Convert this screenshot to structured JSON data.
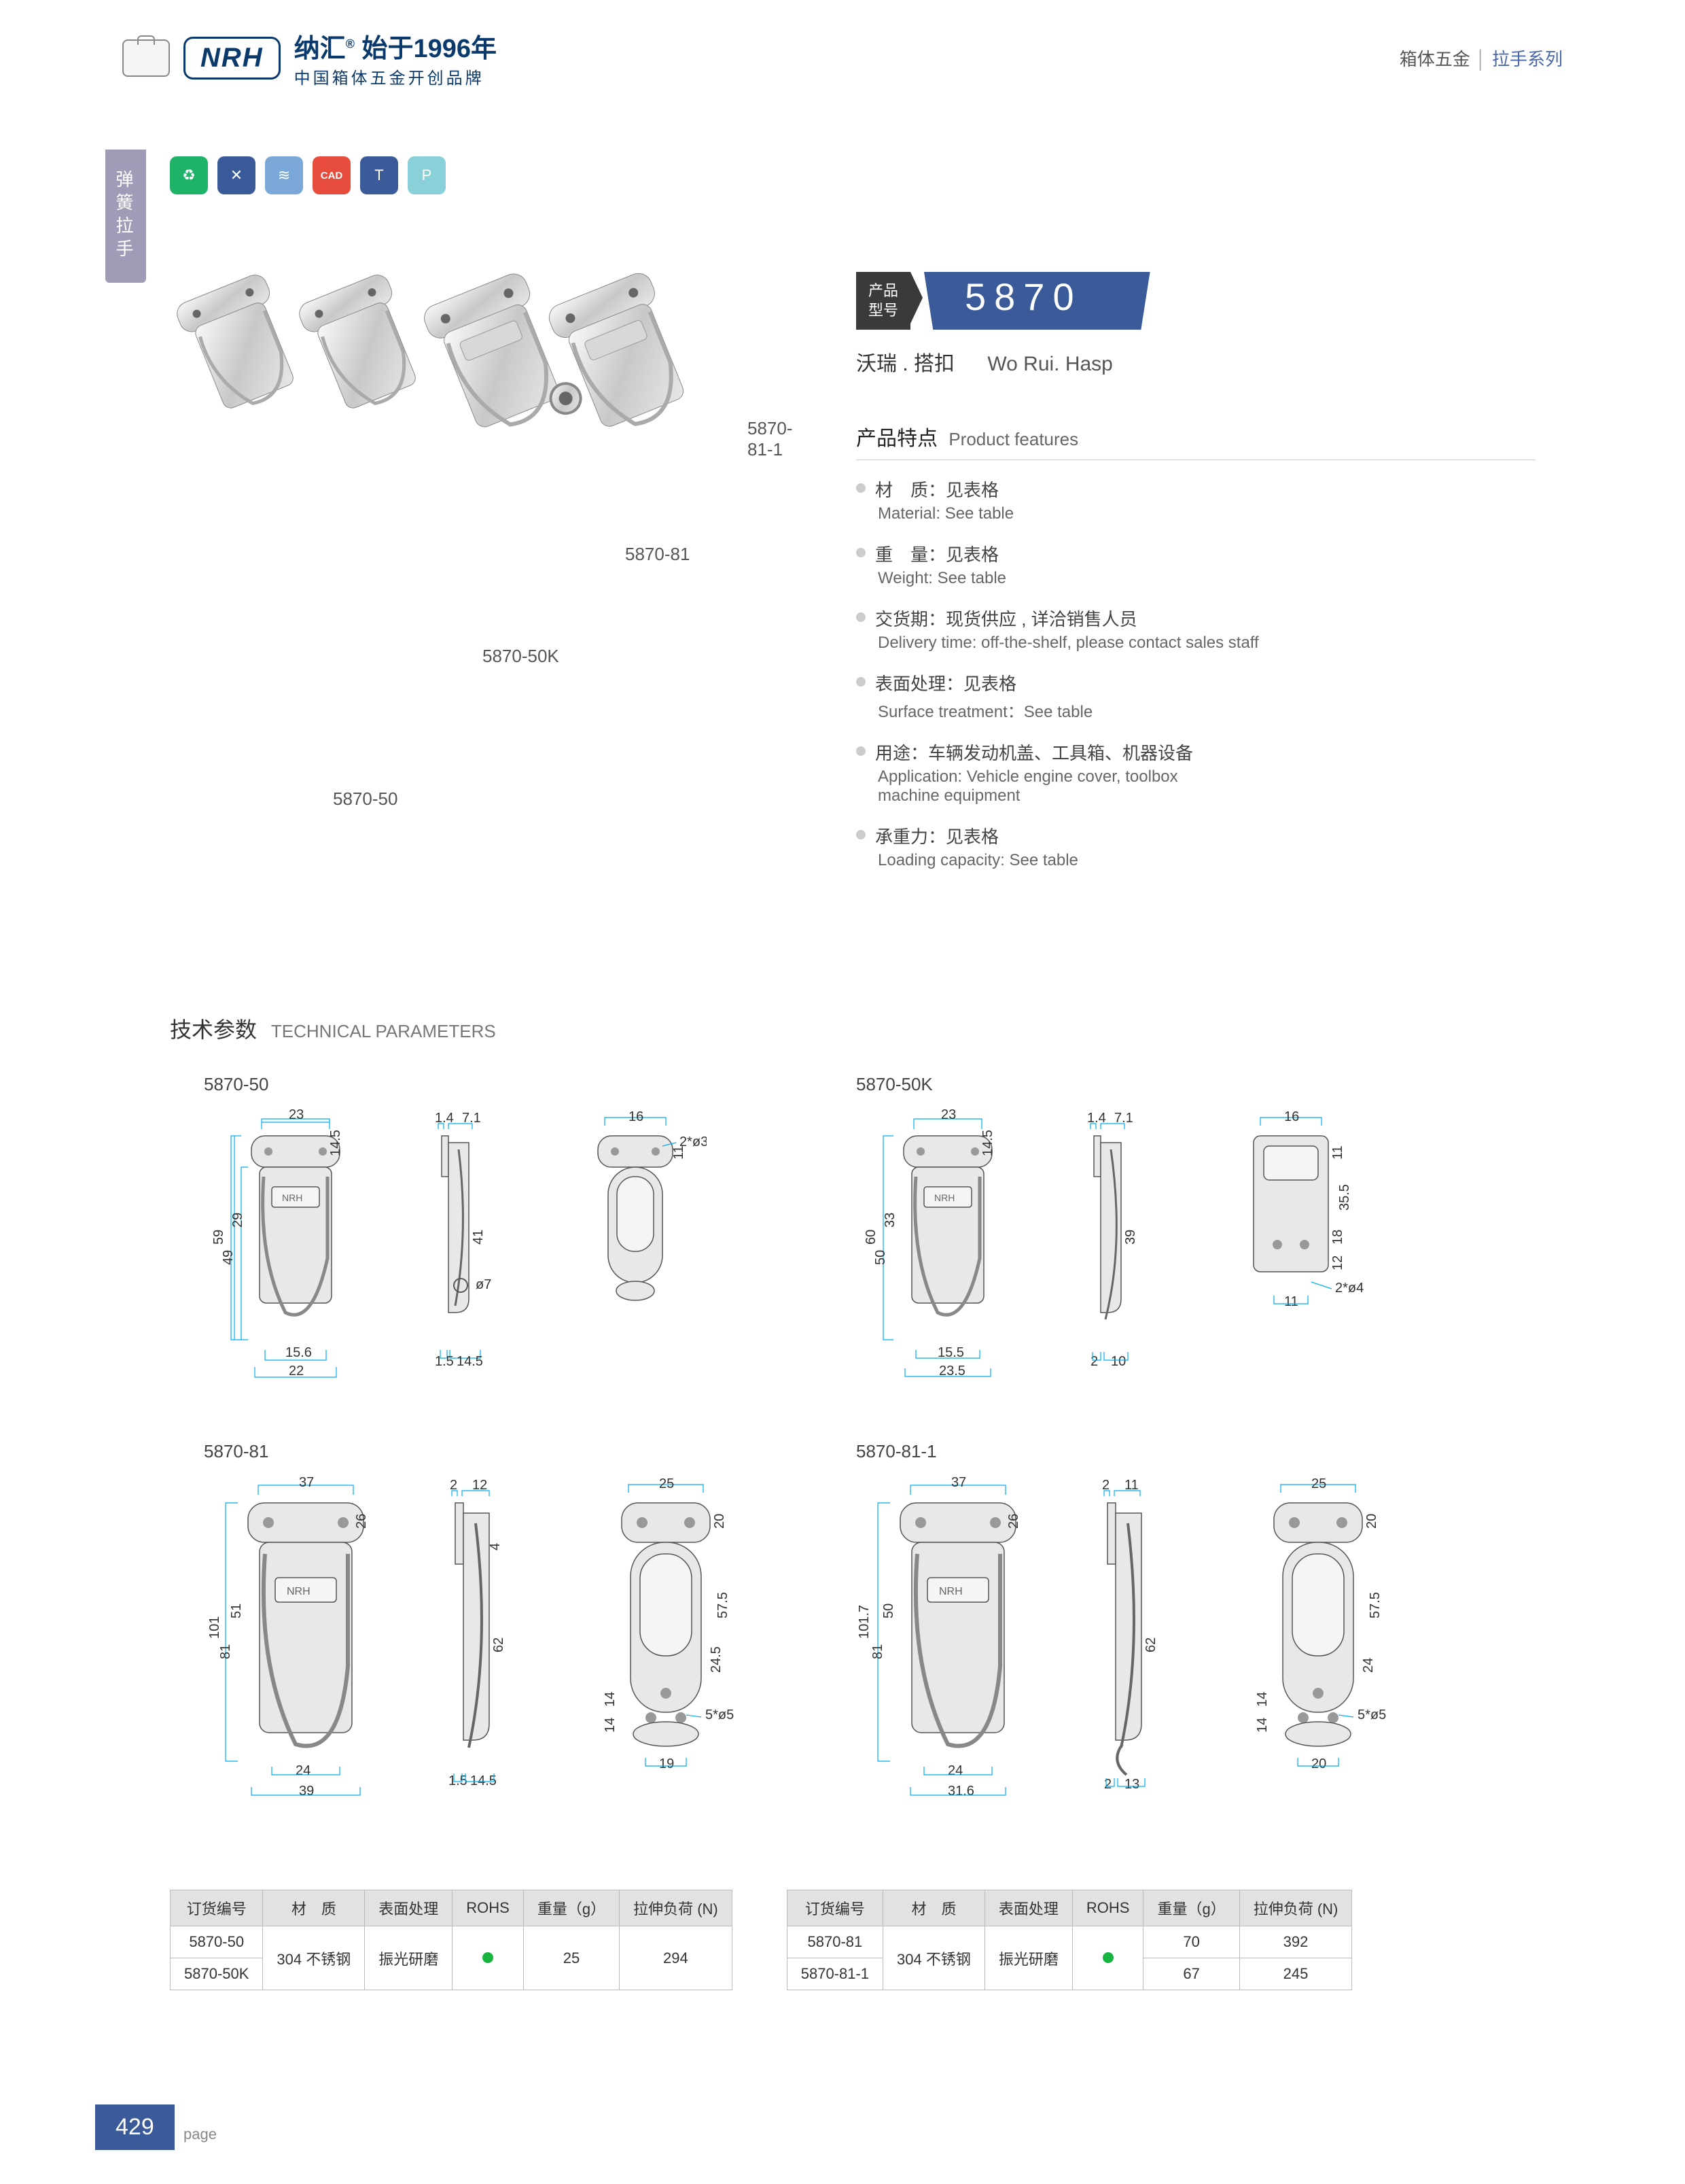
{
  "header": {
    "brand_cn": "纳汇",
    "brand_year": "始于1996年",
    "brand_sub": "中国箱体五金开创品牌",
    "brand_logo": "NRH",
    "right_a": "箱体五金",
    "right_b": "拉手系列"
  },
  "side_tab": "弹簧拉手",
  "feature_icons": [
    {
      "bg": "#1fb36a",
      "text": "♻"
    },
    {
      "bg": "#3a5a9a",
      "text": "✕"
    },
    {
      "bg": "#7aa8d8",
      "text": "≋"
    },
    {
      "bg": "#e74c3c",
      "text": "CAD"
    },
    {
      "bg": "#3a5a9a",
      "text": "T"
    },
    {
      "bg": "#8ad0d8",
      "text": "P"
    }
  ],
  "image_labels": {
    "a": "5870-81-1",
    "b": "5870-81",
    "c": "5870-50K",
    "d": "5870-50"
  },
  "product_id_label": "产品\n型号",
  "product_id": "5870",
  "product_name_cn": "沃瑞 . 搭扣",
  "product_name_en": "Wo Rui. Hasp",
  "features_title_cn": "产品特点",
  "features_title_en": "Product features",
  "features": [
    {
      "cn": "材　质：见表格",
      "en": "Material: See table"
    },
    {
      "cn": "重　量：见表格",
      "en": "Weight: See table"
    },
    {
      "cn": "交货期：现货供应 , 详洽销售人员",
      "en": "Delivery time: off-the-shelf, please contact sales staff"
    },
    {
      "cn": "表面处理：见表格",
      "en": "Surface treatment：See table"
    },
    {
      "cn": "用途：车辆发动机盖、工具箱、机器设备",
      "en": "Application: Vehicle engine cover, toolbox\n machine equipment"
    },
    {
      "cn": "承重力：见表格",
      "en": "Loading capacity: See table"
    }
  ],
  "tech_title_cn": "技术参数",
  "tech_title_en": "TECHNICAL PARAMETERS",
  "diagrams": {
    "d1": {
      "title": "5870-50",
      "dims": {
        "w": "23",
        "h": "59",
        "h2": "49",
        "h3": "29",
        "h4": "14.5",
        "bw": "22",
        "bw2": "15.6",
        "s1": "1.4",
        "s2": "7.1",
        "s3": "1.5",
        "s4": "14.5",
        "s5": "41",
        "r1": "16",
        "r2": "11",
        "r3": "2*ø3",
        "r4": "ø7"
      }
    },
    "d2": {
      "title": "5870-50K",
      "dims": {
        "w": "23",
        "h": "60",
        "h2": "50",
        "h3": "33",
        "h4": "14.5",
        "bw": "23.5",
        "bw2": "15.5",
        "s1": "1.4",
        "s2": "7.1",
        "s3": "2",
        "s4": "10",
        "s5": "39",
        "r1": "16",
        "r2": "11",
        "r3": "35.5",
        "r4": "18",
        "r5": "12",
        "r6": "2*ø4",
        "r7": "11"
      }
    },
    "d3": {
      "title": "5870-81",
      "dims": {
        "w": "37",
        "h": "101",
        "h2": "81",
        "h3": "51",
        "h4": "26",
        "bw": "39",
        "bw2": "24",
        "s1": "2",
        "s2": "12",
        "s3": "1.5",
        "s4": "14.5",
        "s5": "62",
        "s6": "4",
        "r1": "25",
        "r2": "20",
        "r3": "57.5",
        "r4": "24.5",
        "r5": "14",
        "r6": "14",
        "r7": "5*ø5",
        "r8": "19"
      }
    },
    "d4": {
      "title": "5870-81-1",
      "dims": {
        "w": "37",
        "h": "101.7",
        "h2": "81",
        "h3": "50",
        "h4": "26",
        "bw": "31.6",
        "bw2": "24",
        "s1": "2",
        "s2": "11",
        "s3": "2",
        "s4": "13",
        "s5": "62",
        "r1": "25",
        "r2": "20",
        "r3": "57.5",
        "r4": "24",
        "r5": "14",
        "r6": "14",
        "r7": "5*ø5",
        "r8": "20"
      }
    }
  },
  "tables": {
    "headers": [
      "订货编号",
      "材　质",
      "表面处理",
      "ROHS",
      "重量（g）",
      "拉伸负荷 (N)"
    ],
    "t1": {
      "rows": [
        [
          "5870-50",
          "304 不锈钢",
          "振光研磨",
          "green",
          "25",
          "294"
        ],
        [
          "5870-50K",
          "",
          "",
          "",
          "",
          ""
        ]
      ],
      "merge": true
    },
    "t2": {
      "rows": [
        [
          "5870-81",
          "304 不锈钢",
          "振光研磨",
          "green",
          "70",
          "392"
        ],
        [
          "5870-81-1",
          "",
          "",
          "",
          "67",
          "245"
        ]
      ],
      "merge": true
    }
  },
  "page_number": "429",
  "page_label": "page"
}
